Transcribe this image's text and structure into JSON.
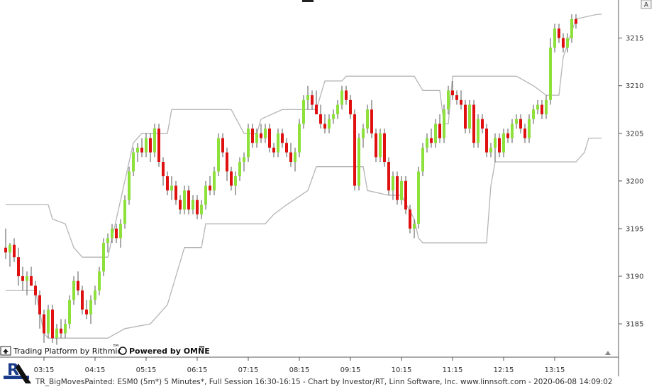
{
  "chart_data": {
    "type": "candlestick",
    "symbol_line": "TR_BigMovesPainted: ESM0 (5m*) 5 Minutes*, Full Session 16:30-16:15 - Chart by Investor/RT, Linn Software, Inc. www.linnsoft.com - 2020-06-08 14:09:02",
    "ylim": [
      3181.5,
      3219
    ],
    "y_ticks": [
      3185,
      3190,
      3195,
      3200,
      3205,
      3210,
      3215
    ],
    "x_ticks": [
      {
        "label": "03:15",
        "index": 9
      },
      {
        "label": "04:15",
        "index": 21
      },
      {
        "label": "05:15",
        "index": 33
      },
      {
        "label": "06:15",
        "index": 45
      },
      {
        "label": "07:15",
        "index": 57
      },
      {
        "label": "08:15",
        "index": 69
      },
      {
        "label": "09:15",
        "index": 81
      },
      {
        "label": "10:15",
        "index": 93
      },
      {
        "label": "11:15",
        "index": 105
      },
      {
        "label": "12:15",
        "index": 117
      },
      {
        "label": "13:15",
        "index": 129
      }
    ],
    "colors": {
      "up": "#8ee03a",
      "down": "#e01010",
      "wick": "#555555",
      "channel": "#b5b5b5",
      "grid": "#ffffff"
    },
    "candles": [
      [
        3193.0,
        3195.0,
        3191.8,
        3192.5
      ],
      [
        3192.5,
        3193.5,
        3191.0,
        3193.3
      ],
      [
        3193.3,
        3194.0,
        3191.5,
        3192.0
      ],
      [
        3192.0,
        3193.0,
        3189.0,
        3190.0
      ],
      [
        3190.0,
        3191.0,
        3188.5,
        3189.5
      ],
      [
        3189.5,
        3190.5,
        3188.0,
        3190.0
      ],
      [
        3190.0,
        3191.0,
        3189.0,
        3189.0
      ],
      [
        3189.0,
        3189.5,
        3187.0,
        3188.0
      ],
      [
        3188.0,
        3188.5,
        3184.5,
        3186.0
      ],
      [
        3186.0,
        3186.5,
        3183.0,
        3184.0
      ],
      [
        3184.0,
        3187.0,
        3183.5,
        3186.5
      ],
      [
        3186.5,
        3187.0,
        3183.0,
        3183.5
      ],
      [
        3183.5,
        3185.0,
        3182.8,
        3184.5
      ],
      [
        3184.5,
        3185.5,
        3183.5,
        3184.0
      ],
      [
        3184.0,
        3185.5,
        3183.5,
        3185.0
      ],
      [
        3185.0,
        3188.0,
        3184.5,
        3187.5
      ],
      [
        3187.5,
        3190.0,
        3187.0,
        3189.5
      ],
      [
        3189.5,
        3190.5,
        3188.0,
        3188.5
      ],
      [
        3188.5,
        3189.0,
        3186.0,
        3186.5
      ],
      [
        3186.5,
        3187.5,
        3185.5,
        3186.0
      ],
      [
        3186.0,
        3188.0,
        3185.0,
        3187.5
      ],
      [
        3187.5,
        3189.0,
        3187.0,
        3188.5
      ],
      [
        3188.5,
        3191.0,
        3188.0,
        3190.5
      ],
      [
        3190.5,
        3194.0,
        3190.0,
        3193.5
      ],
      [
        3193.5,
        3194.5,
        3192.5,
        3194.0
      ],
      [
        3194.0,
        3195.5,
        3193.5,
        3195.0
      ],
      [
        3195.0,
        3195.5,
        3193.5,
        3194.0
      ],
      [
        3194.0,
        3196.0,
        3193.0,
        3195.5
      ],
      [
        3195.5,
        3198.5,
        3195.0,
        3198.0
      ],
      [
        3198.0,
        3201.5,
        3197.5,
        3201.0
      ],
      [
        3201.0,
        3203.5,
        3200.5,
        3203.0
      ],
      [
        3203.0,
        3204.0,
        3202.0,
        3203.5
      ],
      [
        3203.5,
        3204.5,
        3202.5,
        3203.0
      ],
      [
        3203.0,
        3205.0,
        3202.5,
        3204.5
      ],
      [
        3204.5,
        3205.0,
        3202.0,
        3203.0
      ],
      [
        3203.0,
        3206.0,
        3202.5,
        3205.5
      ],
      [
        3205.5,
        3206.0,
        3201.5,
        3202.0
      ],
      [
        3202.0,
        3202.5,
        3199.5,
        3200.5
      ],
      [
        3200.5,
        3201.0,
        3198.5,
        3199.0
      ],
      [
        3199.0,
        3200.5,
        3198.0,
        3199.5
      ],
      [
        3199.5,
        3200.0,
        3197.5,
        3198.0
      ],
      [
        3198.0,
        3198.5,
        3196.5,
        3197.0
      ],
      [
        3197.0,
        3199.5,
        3196.5,
        3199.0
      ],
      [
        3199.0,
        3199.5,
        3196.5,
        3197.0
      ],
      [
        3197.0,
        3198.5,
        3196.5,
        3198.0
      ],
      [
        3198.0,
        3198.5,
        3196.0,
        3196.5
      ],
      [
        3196.5,
        3198.0,
        3196.0,
        3197.5
      ],
      [
        3197.5,
        3200.0,
        3197.0,
        3199.5
      ],
      [
        3199.5,
        3200.5,
        3198.5,
        3199.0
      ],
      [
        3199.0,
        3201.5,
        3198.5,
        3201.0
      ],
      [
        3201.0,
        3205.0,
        3200.5,
        3204.5
      ],
      [
        3204.5,
        3205.0,
        3202.5,
        3203.0
      ],
      [
        3203.0,
        3203.5,
        3200.0,
        3201.0
      ],
      [
        3201.0,
        3201.5,
        3199.0,
        3199.5
      ],
      [
        3199.5,
        3201.0,
        3198.5,
        3200.5
      ],
      [
        3200.5,
        3202.5,
        3200.0,
        3202.0
      ],
      [
        3202.0,
        3203.0,
        3201.0,
        3202.5
      ],
      [
        3202.5,
        3206.0,
        3202.0,
        3205.5
      ],
      [
        3205.5,
        3206.0,
        3203.5,
        3204.0
      ],
      [
        3204.0,
        3205.5,
        3203.5,
        3205.0
      ],
      [
        3205.0,
        3206.0,
        3204.0,
        3204.5
      ],
      [
        3204.5,
        3206.0,
        3204.0,
        3205.5
      ],
      [
        3205.5,
        3206.0,
        3203.0,
        3203.5
      ],
      [
        3203.5,
        3204.0,
        3202.5,
        3203.0
      ],
      [
        3203.0,
        3205.5,
        3202.5,
        3205.0
      ],
      [
        3205.0,
        3205.5,
        3203.5,
        3204.0
      ],
      [
        3204.0,
        3204.5,
        3202.5,
        3203.0
      ],
      [
        3203.0,
        3204.0,
        3201.5,
        3202.0
      ],
      [
        3202.0,
        3203.5,
        3201.0,
        3203.0
      ],
      [
        3203.0,
        3206.5,
        3202.5,
        3206.0
      ],
      [
        3206.0,
        3209.0,
        3205.5,
        3208.5
      ],
      [
        3208.5,
        3210.0,
        3207.5,
        3209.0
      ],
      [
        3209.0,
        3209.5,
        3207.5,
        3208.0
      ],
      [
        3208.0,
        3209.5,
        3207.0,
        3207.0
      ],
      [
        3207.0,
        3208.0,
        3205.5,
        3206.0
      ],
      [
        3206.0,
        3207.0,
        3205.0,
        3205.5
      ],
      [
        3205.5,
        3207.0,
        3205.0,
        3206.5
      ],
      [
        3206.5,
        3207.5,
        3206.0,
        3207.0
      ],
      [
        3207.0,
        3208.5,
        3206.5,
        3208.0
      ],
      [
        3208.0,
        3210.0,
        3207.5,
        3209.5
      ],
      [
        3209.5,
        3210.0,
        3208.0,
        3208.5
      ],
      [
        3208.5,
        3209.0,
        3206.5,
        3207.0
      ],
      [
        3207.0,
        3207.5,
        3199.0,
        3199.5
      ],
      [
        3199.5,
        3205.0,
        3199.0,
        3204.5
      ],
      [
        3204.5,
        3206.0,
        3203.5,
        3205.5
      ],
      [
        3205.5,
        3208.0,
        3205.0,
        3207.5
      ],
      [
        3207.5,
        3208.5,
        3204.5,
        3205.0
      ],
      [
        3205.0,
        3205.5,
        3202.0,
        3202.5
      ],
      [
        3202.5,
        3205.5,
        3202.0,
        3205.0
      ],
      [
        3205.0,
        3205.5,
        3201.5,
        3202.0
      ],
      [
        3202.0,
        3202.5,
        3198.5,
        3199.0
      ],
      [
        3199.0,
        3201.0,
        3198.0,
        3200.5
      ],
      [
        3200.5,
        3201.0,
        3197.5,
        3198.0
      ],
      [
        3198.0,
        3200.5,
        3197.5,
        3200.0
      ],
      [
        3200.0,
        3200.5,
        3196.5,
        3197.0
      ],
      [
        3197.0,
        3197.5,
        3194.5,
        3195.0
      ],
      [
        3195.0,
        3196.0,
        3194.0,
        3195.5
      ],
      [
        3195.5,
        3201.5,
        3195.0,
        3201.0
      ],
      [
        3201.0,
        3204.0,
        3200.5,
        3203.5
      ],
      [
        3203.5,
        3205.0,
        3203.0,
        3204.5
      ],
      [
        3204.5,
        3205.5,
        3203.5,
        3204.0
      ],
      [
        3204.0,
        3206.5,
        3203.5,
        3206.0
      ],
      [
        3206.0,
        3207.0,
        3204.0,
        3204.5
      ],
      [
        3204.5,
        3208.0,
        3204.0,
        3207.5
      ],
      [
        3207.5,
        3210.0,
        3207.0,
        3209.5
      ],
      [
        3209.5,
        3210.5,
        3208.5,
        3209.0
      ],
      [
        3209.0,
        3209.5,
        3208.0,
        3208.5
      ],
      [
        3208.5,
        3209.5,
        3207.5,
        3208.0
      ],
      [
        3208.0,
        3208.5,
        3205.0,
        3205.5
      ],
      [
        3205.5,
        3208.5,
        3205.0,
        3208.0
      ],
      [
        3208.0,
        3208.5,
        3203.5,
        3204.0
      ],
      [
        3204.0,
        3207.0,
        3203.5,
        3206.5
      ],
      [
        3206.5,
        3207.0,
        3205.0,
        3205.5
      ],
      [
        3205.5,
        3206.0,
        3202.5,
        3203.0
      ],
      [
        3203.0,
        3204.0,
        3202.5,
        3203.5
      ],
      [
        3203.5,
        3205.0,
        3202.0,
        3204.5
      ],
      [
        3204.5,
        3205.0,
        3202.5,
        3203.0
      ],
      [
        3203.0,
        3205.5,
        3202.5,
        3205.0
      ],
      [
        3205.0,
        3205.5,
        3204.0,
        3204.5
      ],
      [
        3204.5,
        3206.5,
        3204.0,
        3206.0
      ],
      [
        3206.0,
        3207.0,
        3205.5,
        3206.5
      ],
      [
        3206.5,
        3207.0,
        3205.0,
        3205.5
      ],
      [
        3205.5,
        3206.0,
        3204.0,
        3204.5
      ],
      [
        3204.5,
        3207.0,
        3204.0,
        3206.5
      ],
      [
        3206.5,
        3208.0,
        3206.0,
        3207.5
      ],
      [
        3207.5,
        3208.5,
        3207.0,
        3208.0
      ],
      [
        3208.0,
        3208.5,
        3206.5,
        3207.0
      ],
      [
        3207.0,
        3209.0,
        3206.5,
        3208.5
      ],
      [
        3208.5,
        3215.0,
        3208.0,
        3214.0
      ],
      [
        3214.0,
        3216.5,
        3213.5,
        3216.0
      ],
      [
        3216.0,
        3216.5,
        3214.5,
        3215.0
      ],
      [
        3215.0,
        3215.5,
        3213.5,
        3214.0
      ],
      [
        3214.0,
        3215.5,
        3213.5,
        3215.0
      ],
      [
        3215.0,
        3217.5,
        3214.5,
        3217.0
      ],
      [
        3217.0,
        3217.5,
        3216.0,
        3216.5
      ]
    ],
    "channel_upper": [
      [
        0,
        3197.5
      ],
      [
        10,
        3197.5
      ],
      [
        11,
        3196.0
      ],
      [
        14,
        3195.5
      ],
      [
        16,
        3193.0
      ],
      [
        18,
        3192.0
      ],
      [
        24,
        3192.0
      ],
      [
        30,
        3204.0
      ],
      [
        32,
        3205.0
      ],
      [
        38,
        3205.0
      ],
      [
        39,
        3207.5
      ],
      [
        53,
        3207.5
      ],
      [
        56,
        3205.0
      ],
      [
        59,
        3205.0
      ],
      [
        60,
        3206.5
      ],
      [
        65,
        3207.5
      ],
      [
        73,
        3207.5
      ],
      [
        75,
        3210.5
      ],
      [
        79,
        3210.5
      ],
      [
        80,
        3211.0
      ],
      [
        93,
        3211.0
      ],
      [
        96,
        3211.0
      ],
      [
        98,
        3209.5
      ],
      [
        102,
        3209.5
      ],
      [
        103,
        3206.0
      ],
      [
        104,
        3206.0
      ],
      [
        105,
        3211.0
      ],
      [
        120,
        3211.0
      ],
      [
        124,
        3210.0
      ],
      [
        127,
        3209.0
      ],
      [
        130,
        3209.0
      ],
      [
        131,
        3213.0
      ],
      [
        134,
        3217.0
      ],
      [
        139,
        3217.5
      ],
      [
        140,
        3217.5
      ]
    ],
    "channel_lower": [
      [
        0,
        3188.5
      ],
      [
        7,
        3188.5
      ],
      [
        9,
        3184.0
      ],
      [
        10,
        3183.5
      ],
      [
        18,
        3183.5
      ],
      [
        24,
        3183.5
      ],
      [
        28,
        3184.5
      ],
      [
        34,
        3185.0
      ],
      [
        38,
        3187.0
      ],
      [
        40,
        3190.0
      ],
      [
        42,
        3193.0
      ],
      [
        46,
        3193.0
      ],
      [
        47,
        3195.5
      ],
      [
        61,
        3195.5
      ],
      [
        63,
        3196.5
      ],
      [
        66,
        3197.5
      ],
      [
        71,
        3199.0
      ],
      [
        73,
        3201.5
      ],
      [
        84,
        3201.5
      ],
      [
        85,
        3199.0
      ],
      [
        90,
        3198.5
      ],
      [
        93,
        3198.5
      ],
      [
        96,
        3196.0
      ],
      [
        97,
        3194.0
      ],
      [
        98,
        3193.5
      ],
      [
        113,
        3193.5
      ],
      [
        114,
        3199.5
      ],
      [
        115,
        3202.0
      ],
      [
        117,
        3202.0
      ],
      [
        123,
        3202.0
      ],
      [
        134,
        3202.0
      ],
      [
        136,
        3203.0
      ],
      [
        137,
        3204.5
      ],
      [
        140,
        3204.5
      ]
    ]
  },
  "header": {
    "symbol_badge": "A"
  },
  "branding": {
    "rithmic": "Trading Platform by Rithmic",
    "rithmic_tm": "™",
    "omne": "Powered by OMNE",
    "omne_tm": "™",
    "logo_letter": "R"
  }
}
